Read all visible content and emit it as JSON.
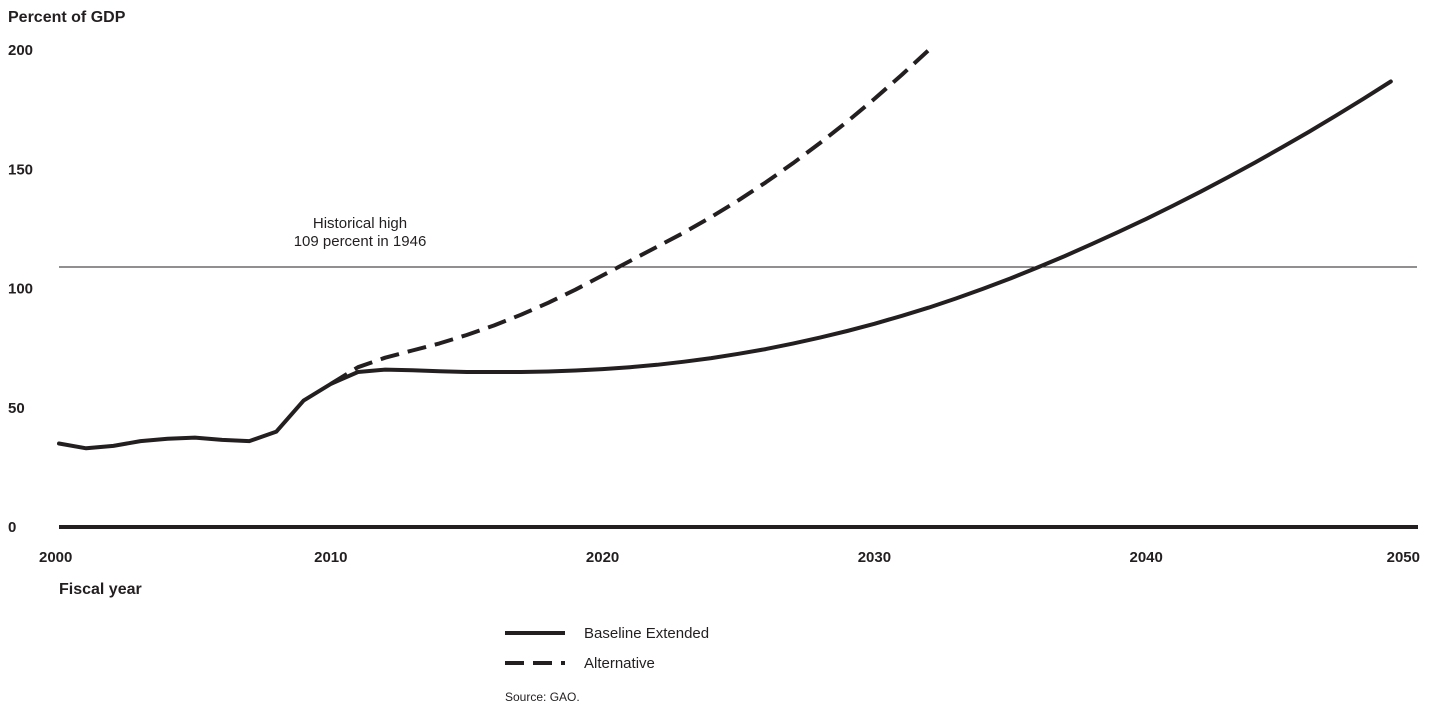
{
  "chart_data": {
    "type": "line",
    "ylabel": "Percent of GDP",
    "xlabel": "Fiscal year",
    "xlim": [
      2000,
      2050
    ],
    "ylim": [
      0,
      200
    ],
    "x_ticks": [
      2000,
      2010,
      2020,
      2030,
      2040,
      2050
    ],
    "y_ticks": [
      0,
      50,
      100,
      150,
      200
    ],
    "grid": false,
    "legend_position": "bottom-center",
    "reference_line": {
      "y": 109,
      "label_line1": "Historical high",
      "label_line2": "109 percent in 1946"
    },
    "series": [
      {
        "name": "Baseline Extended",
        "style": "solid",
        "x": [
          2000,
          2001,
          2002,
          2003,
          2004,
          2005,
          2006,
          2007,
          2008,
          2009,
          2010,
          2011,
          2012,
          2013,
          2014,
          2015,
          2016,
          2017,
          2018,
          2019,
          2020,
          2021,
          2022,
          2023,
          2024,
          2025,
          2026,
          2027,
          2028,
          2029,
          2030,
          2031,
          2032,
          2033,
          2034,
          2035,
          2036,
          2037,
          2038,
          2039,
          2040,
          2041,
          2042,
          2043,
          2044,
          2045,
          2046,
          2047,
          2048,
          2049
        ],
        "values": [
          35,
          33,
          34,
          36,
          37,
          37.5,
          36.5,
          36,
          40,
          53,
          60,
          65,
          66,
          65.7,
          65.3,
          65,
          65,
          65,
          65.2,
          65.6,
          66.2,
          67,
          68,
          69.3,
          70.8,
          72.6,
          74.6,
          76.9,
          79.4,
          82.2,
          85.2,
          88.5,
          92,
          95.8,
          99.9,
          104.2,
          108.8,
          113.6,
          118.6,
          123.8,
          129.2,
          134.8,
          140.6,
          146.6,
          152.8,
          159.2,
          165.8,
          172.6,
          179.6,
          186.8
        ]
      },
      {
        "name": "Alternative",
        "style": "dashed",
        "x": [
          2010,
          2011,
          2012,
          2013,
          2014,
          2015,
          2016,
          2017,
          2018,
          2019,
          2020,
          2021,
          2022,
          2023,
          2024,
          2025,
          2026,
          2027,
          2028,
          2029,
          2030,
          2031,
          2032
        ],
        "values": [
          60,
          67,
          71,
          74,
          77,
          80.5,
          84.5,
          89,
          94,
          99.5,
          105.5,
          111.5,
          117.5,
          123.5,
          130,
          137,
          144.5,
          152.5,
          161,
          170,
          179.5,
          189.5,
          200
        ]
      }
    ],
    "source": "Source: GAO."
  }
}
